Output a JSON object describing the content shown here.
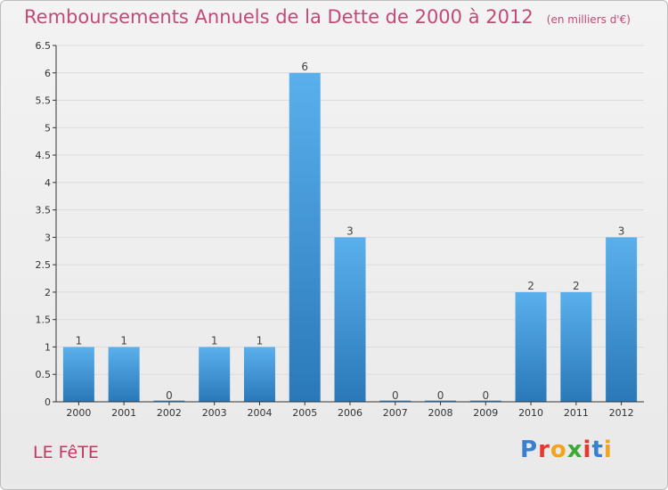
{
  "header": {
    "title": "Remboursements Annuels de la Dette de 2000 à 2012",
    "unit": "(en milliers d'€)"
  },
  "footer": {
    "commune": "LE FêTE",
    "logo_letters": [
      {
        "char": "P",
        "color": "#3a7fd0"
      },
      {
        "char": "r",
        "color": "#e8372b"
      },
      {
        "char": "o",
        "color": "#f2a41c"
      },
      {
        "char": "x",
        "color": "#3aa935"
      },
      {
        "char": "i",
        "color": "#e8372b"
      },
      {
        "char": "t",
        "color": "#3a7fd0"
      },
      {
        "char": "i",
        "color": "#f2a41c"
      }
    ]
  },
  "colors": {
    "bar_light": "#5ab0ec",
    "bar_dark": "#2a78b8",
    "axis": "#333333",
    "grid": "#dcdcdc",
    "title": "#c24a78"
  },
  "chart_data": {
    "type": "bar",
    "title": "Remboursements Annuels de la Dette de 2000 à 2012",
    "xlabel": "",
    "ylabel": "",
    "categories": [
      "2000",
      "2001",
      "2002",
      "2003",
      "2004",
      "2005",
      "2006",
      "2007",
      "2008",
      "2009",
      "2010",
      "2011",
      "2012"
    ],
    "values": [
      1,
      1,
      0,
      1,
      1,
      6,
      3,
      0,
      0,
      0,
      2,
      2,
      3
    ],
    "data_labels": [
      "1",
      "1",
      "0",
      "1",
      "1",
      "6",
      "3",
      "0",
      "0",
      "0",
      "2",
      "2",
      "3"
    ],
    "ylim": [
      0,
      6.5
    ],
    "yticks": [
      0,
      0.5,
      1,
      1.5,
      2,
      2.5,
      3,
      3.5,
      4,
      4.5,
      5,
      5.5,
      6,
      6.5
    ],
    "ytick_labels": [
      "0",
      "0.5",
      "1",
      "1.5",
      "2",
      "2.5",
      "3",
      "3.5",
      "4",
      "4.5",
      "5",
      "5.5",
      "6",
      "6.5"
    ],
    "grid": true
  }
}
